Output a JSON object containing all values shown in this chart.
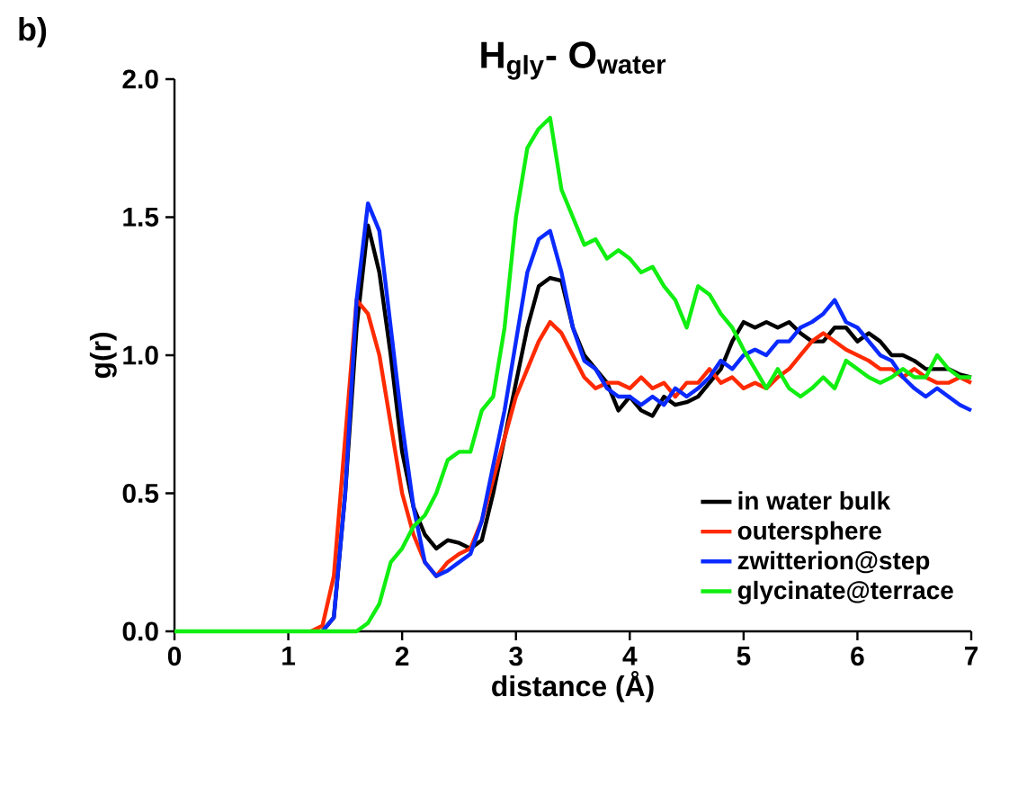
{
  "chart_data": {
    "type": "line",
    "title": "H$_{gly}$- O$_{water}$",
    "xlabel": "distance (Å)",
    "ylabel": "g(r)",
    "annotations": [
      "b)"
    ],
    "x": [
      0,
      0.1,
      0.2,
      0.3,
      0.4,
      0.5,
      0.6,
      0.7,
      0.8,
      0.9,
      1.0,
      1.1,
      1.2,
      1.3,
      1.4,
      1.5,
      1.6,
      1.7,
      1.8,
      1.9,
      2.0,
      2.1,
      2.2,
      2.3,
      2.4,
      2.5,
      2.6,
      2.7,
      2.8,
      2.9,
      3.0,
      3.1,
      3.2,
      3.3,
      3.4,
      3.5,
      3.6,
      3.7,
      3.8,
      3.9,
      4.0,
      4.1,
      4.2,
      4.3,
      4.4,
      4.5,
      4.6,
      4.7,
      4.8,
      4.9,
      5.0,
      5.1,
      5.2,
      5.3,
      5.4,
      5.5,
      5.6,
      5.7,
      5.8,
      5.9,
      6.0,
      6.1,
      6.2,
      6.3,
      6.4,
      6.5,
      6.6,
      6.7,
      6.8,
      6.9,
      7.0
    ],
    "series": [
      {
        "name": "in water bulk",
        "color": "#000000",
        "values": [
          null,
          null,
          null,
          null,
          null,
          null,
          null,
          null,
          null,
          null,
          null,
          null,
          null,
          0,
          0.05,
          0.5,
          1.1,
          1.47,
          1.3,
          1.0,
          0.65,
          0.45,
          0.35,
          0.3,
          0.33,
          0.32,
          0.3,
          0.33,
          0.5,
          0.7,
          0.9,
          1.1,
          1.25,
          1.28,
          1.27,
          1.1,
          1.0,
          0.95,
          0.9,
          0.8,
          0.85,
          0.8,
          0.78,
          0.85,
          0.82,
          0.83,
          0.85,
          0.9,
          0.95,
          1.05,
          1.12,
          1.1,
          1.12,
          1.1,
          1.12,
          1.08,
          1.05,
          1.05,
          1.1,
          1.1,
          1.05,
          1.08,
          1.05,
          1.0,
          1.0,
          0.98,
          0.95,
          0.95,
          0.95,
          0.93,
          0.92
        ]
      },
      {
        "name": "outersphere",
        "color": "#ff2a00",
        "values": [
          null,
          null,
          null,
          null,
          null,
          null,
          null,
          null,
          null,
          null,
          null,
          null,
          0,
          0.02,
          0.2,
          0.7,
          1.2,
          1.15,
          1.0,
          0.75,
          0.5,
          0.35,
          0.25,
          0.2,
          0.25,
          0.28,
          0.3,
          0.4,
          0.55,
          0.7,
          0.85,
          0.95,
          1.05,
          1.12,
          1.08,
          1.0,
          0.92,
          0.88,
          0.9,
          0.9,
          0.88,
          0.92,
          0.88,
          0.9,
          0.85,
          0.9,
          0.9,
          0.95,
          0.9,
          0.92,
          0.88,
          0.9,
          0.88,
          0.92,
          0.95,
          1.0,
          1.05,
          1.08,
          1.05,
          1.02,
          1.0,
          0.98,
          0.95,
          0.95,
          0.92,
          0.95,
          0.92,
          0.9,
          0.9,
          0.92,
          0.9
        ]
      },
      {
        "name": "zwitterion@step",
        "color": "#0a2aff",
        "values": [
          null,
          null,
          null,
          null,
          null,
          null,
          null,
          null,
          null,
          null,
          null,
          null,
          null,
          0,
          0.05,
          0.5,
          1.2,
          1.55,
          1.45,
          1.1,
          0.75,
          0.45,
          0.25,
          0.2,
          0.22,
          0.25,
          0.28,
          0.4,
          0.6,
          0.8,
          1.05,
          1.3,
          1.42,
          1.45,
          1.3,
          1.1,
          0.98,
          0.95,
          0.88,
          0.85,
          0.85,
          0.82,
          0.85,
          0.82,
          0.88,
          0.85,
          0.88,
          0.92,
          0.98,
          0.95,
          1.0,
          1.02,
          1.0,
          1.05,
          1.05,
          1.1,
          1.12,
          1.15,
          1.2,
          1.12,
          1.1,
          1.05,
          1.0,
          0.98,
          0.92,
          0.88,
          0.85,
          0.88,
          0.85,
          0.82,
          0.8
        ]
      },
      {
        "name": "glycinate@terrace",
        "color": "#11ee11",
        "values": [
          0,
          0,
          0,
          0,
          0,
          0,
          0,
          0,
          0,
          0,
          0,
          0,
          0,
          0,
          0,
          0,
          0,
          0.03,
          0.1,
          0.25,
          0.3,
          0.38,
          0.42,
          0.5,
          0.62,
          0.65,
          0.65,
          0.8,
          0.85,
          1.1,
          1.5,
          1.75,
          1.82,
          1.86,
          1.6,
          1.5,
          1.4,
          1.42,
          1.35,
          1.38,
          1.35,
          1.3,
          1.32,
          1.25,
          1.2,
          1.1,
          1.25,
          1.22,
          1.15,
          1.1,
          1.02,
          0.95,
          0.88,
          0.95,
          0.88,
          0.85,
          0.88,
          0.92,
          0.88,
          0.98,
          0.95,
          0.92,
          0.9,
          0.92,
          0.95,
          0.92,
          0.92,
          1.0,
          0.95,
          0.92,
          0.92
        ]
      }
    ],
    "xlim": [
      0,
      7
    ],
    "ylim": [
      0,
      2.0
    ],
    "xticks": [
      0,
      1,
      2,
      3,
      4,
      5,
      6,
      7
    ],
    "yticks": [
      {
        "value": 0,
        "label": "0.0"
      },
      {
        "value": 0.5,
        "label": "0.5"
      },
      {
        "value": 1.0,
        "label": "1.0"
      },
      {
        "value": 1.5,
        "label": "1.5"
      },
      {
        "value": 2.0,
        "label": "2.0"
      }
    ],
    "grid": false,
    "legend": "bottom right",
    "marker": "none",
    "line_style": "solid"
  }
}
